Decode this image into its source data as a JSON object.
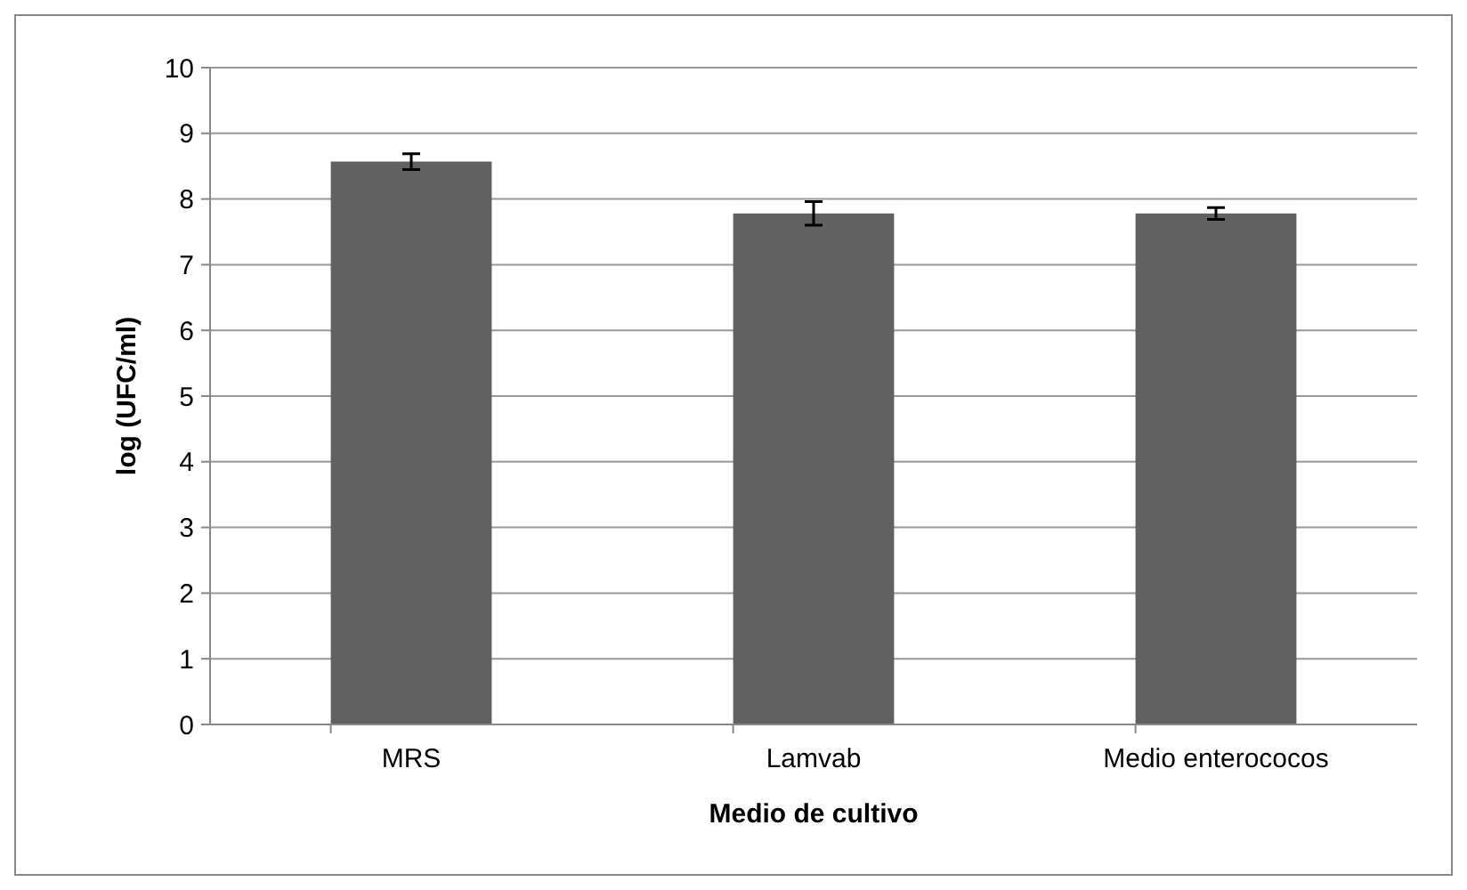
{
  "chart_data": {
    "type": "bar",
    "xlabel": "Medio de cultivo",
    "ylabel": "log (UFC/ml)",
    "categories": [
      "MRS",
      "Lamvab",
      "Medio enterococos"
    ],
    "values": [
      8.57,
      7.78,
      7.78
    ],
    "errors": [
      0.12,
      0.18,
      0.09
    ],
    "color": "#616161",
    "ylim": [
      0,
      10
    ],
    "yticks": [
      0,
      1,
      2,
      3,
      4,
      5,
      6,
      7,
      8,
      9,
      10
    ],
    "grid": "y"
  }
}
